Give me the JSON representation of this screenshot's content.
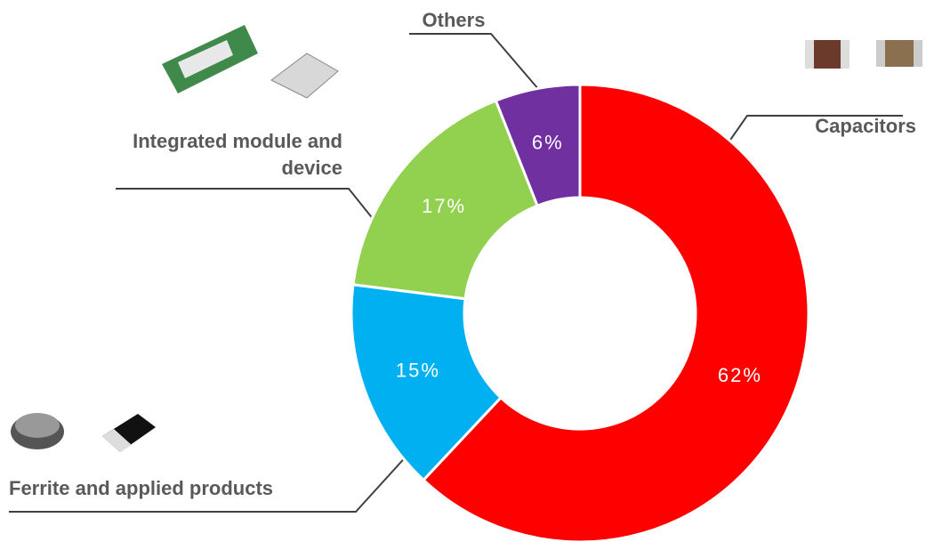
{
  "chart_data": {
    "type": "pie",
    "categories": [
      "Capacitors",
      "Ferrite and applied products",
      "Integrated module and device",
      "Others"
    ],
    "values": [
      62,
      15,
      17,
      6
    ],
    "value_labels": [
      "62%",
      "15%",
      "17%",
      "6%"
    ],
    "colors": [
      "#ff0000",
      "#00b0f0",
      "#92d050",
      "#7030a0"
    ]
  }
}
